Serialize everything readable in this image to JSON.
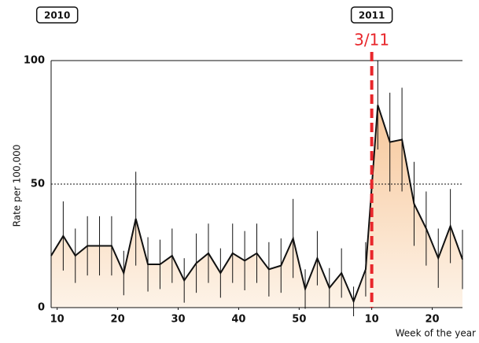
{
  "chart_data": {
    "type": "line",
    "year_labels": [
      {
        "x": 10,
        "label": "2010"
      },
      {
        "x": 62,
        "label": "2011"
      }
    ],
    "ylabel": "Rate per 100,000",
    "xlabel": "Week of the year",
    "marker": {
      "x": 62,
      "label": "3/11",
      "color": "#e8262b"
    },
    "x": [
      9,
      11,
      13,
      15,
      17,
      19,
      21,
      23,
      25,
      27,
      29,
      31,
      33,
      35,
      37,
      39,
      41,
      43,
      45,
      47,
      49,
      51,
      53,
      55,
      57,
      59,
      61,
      63,
      65,
      67,
      69,
      71,
      73,
      75,
      77
    ],
    "series": [
      {
        "color": "#111111",
        "fill": "#f6d0a8",
        "values": [
          21,
          29,
          21,
          25,
          25,
          25,
          14,
          36,
          17.5,
          17.5,
          21,
          11,
          18,
          22,
          14,
          22,
          19,
          22,
          15.5,
          17,
          28,
          7.5,
          20,
          8,
          14,
          2.5,
          15.5,
          82,
          67,
          68,
          42,
          32,
          20,
          33,
          19.5
        ],
        "errors": [
          0,
          14,
          11,
          12,
          12,
          12,
          9,
          19,
          11,
          10,
          11,
          9,
          12,
          12,
          10,
          12,
          12,
          12,
          11,
          11,
          16,
          8,
          11,
          8,
          10,
          6,
          11,
          18,
          20,
          21,
          17,
          15,
          12,
          15,
          12
        ]
      }
    ],
    "xlim": [
      9,
      77
    ],
    "ylim": [
      0,
      100
    ],
    "xticks": [
      10,
      20,
      30,
      40,
      50,
      {
        "value": 62,
        "label": "10"
      },
      {
        "value": 72,
        "label": "20"
      }
    ],
    "yticks": [
      0,
      50,
      100
    ]
  }
}
